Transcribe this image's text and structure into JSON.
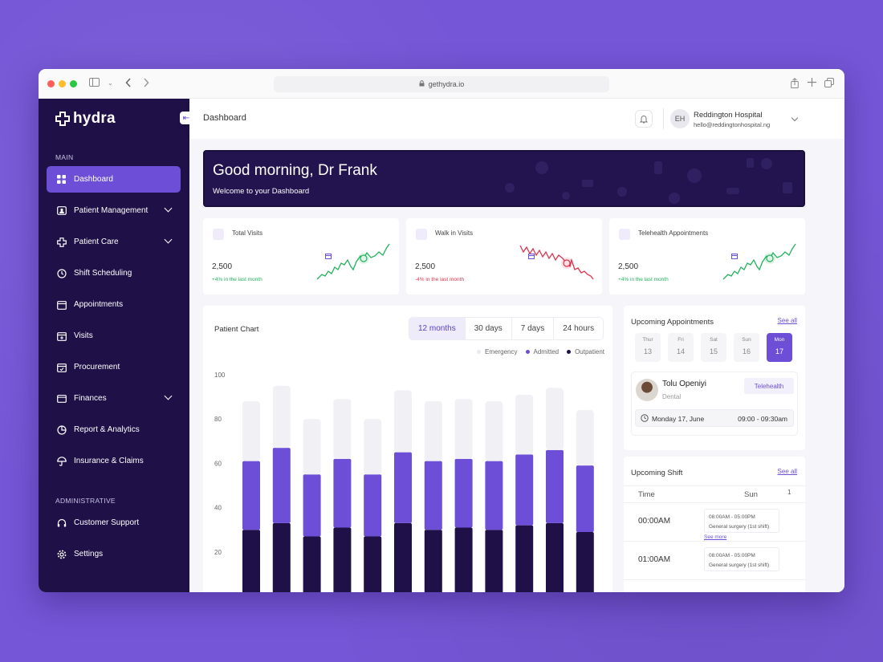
{
  "browser": {
    "url": "gethydra.io"
  },
  "sidebar": {
    "logo": "hydra",
    "section_main": "MAIN",
    "section_admin": "ADMINISTRATIVE",
    "items": [
      {
        "label": "Dashboard",
        "icon": "grid-icon",
        "active": true,
        "expandable": false
      },
      {
        "label": "Patient Management",
        "icon": "id-card-icon",
        "expandable": true
      },
      {
        "label": "Patient Care",
        "icon": "medical-cross-icon",
        "expandable": true
      },
      {
        "label": "Shift Scheduling",
        "icon": "clock-icon",
        "expandable": false
      },
      {
        "label": "Appointments",
        "icon": "calendar-icon",
        "expandable": false
      },
      {
        "label": "Visits",
        "icon": "calendar-plus-icon",
        "expandable": false
      },
      {
        "label": "Procurement",
        "icon": "calendar-add-icon",
        "expandable": false
      },
      {
        "label": "Finances",
        "icon": "wallet-icon",
        "expandable": true
      },
      {
        "label": "Report & Analytics",
        "icon": "pie-chart-icon",
        "expandable": false
      },
      {
        "label": "Insurance & Claims",
        "icon": "umbrella-icon",
        "expandable": false
      }
    ],
    "admin_items": [
      {
        "label": "Customer Support",
        "icon": "headset-icon"
      },
      {
        "label": "Settings",
        "icon": "gear-icon"
      }
    ]
  },
  "header": {
    "title": "Dashboard",
    "user_initials": "EH",
    "user_name": "Reddington Hospital",
    "user_email": "hello@reddingtonhospital.ng"
  },
  "banner": {
    "greeting": "Good morning, Dr Frank",
    "subtitle": "Welcome to your Dashboard"
  },
  "stats": [
    {
      "label": "Total Visits",
      "value": "2,500",
      "change": "+4% in the last month",
      "trend": "up",
      "color": "#22b35e"
    },
    {
      "label": "Walk in Visits",
      "value": "2,500",
      "change": "-4% in the last month",
      "trend": "down",
      "color": "#e0334f"
    },
    {
      "label": "Telehealth Appointments",
      "value": "2,500",
      "change": "+4% in the last month",
      "trend": "up",
      "color": "#22b35e"
    }
  ],
  "patient_chart": {
    "title": "Patient Chart",
    "tabs": [
      "12 months",
      "30 days",
      "7 days",
      "24 hours"
    ],
    "active_tab": "12 months"
  },
  "chart_data": {
    "type": "bar",
    "stacked": true,
    "categories": [
      "",
      "",
      "",
      "",
      "",
      "",
      "",
      "",
      "",
      "",
      "",
      ""
    ],
    "series": [
      {
        "name": "Outpatient",
        "color": "#1f1147",
        "values": [
          30,
          33,
          27,
          31,
          27,
          33,
          30,
          31,
          30,
          32,
          33,
          29
        ]
      },
      {
        "name": "Admitted",
        "color": "#6c4fd6",
        "values": [
          31,
          34,
          28,
          31,
          28,
          32,
          31,
          31,
          31,
          32,
          33,
          30
        ]
      },
      {
        "name": "Emergency",
        "color": "#f0f0f5",
        "values": [
          27,
          28,
          25,
          27,
          25,
          28,
          27,
          27,
          27,
          27,
          28,
          25
        ]
      }
    ],
    "yticks": [
      "100",
      "80",
      "60",
      "40",
      "20"
    ],
    "ylim": [
      0,
      100
    ],
    "legend": "top-right"
  },
  "appointments": {
    "title": "Upcoming Appointments",
    "see_all": "See all",
    "days": [
      {
        "name": "Thur",
        "num": "13"
      },
      {
        "name": "Fri",
        "num": "14"
      },
      {
        "name": "Sat",
        "num": "15"
      },
      {
        "name": "Sun",
        "num": "16"
      },
      {
        "name": "Mon",
        "num": "17",
        "active": true
      }
    ],
    "item": {
      "name": "Tolu Openiyi",
      "specialty": "Dental",
      "tag": "Telehealth",
      "date": "Monday 17, June",
      "time": "09:00 - 09:30am"
    }
  },
  "shift": {
    "title": "Upcoming Shift",
    "see_all": "See all",
    "col_time": "Time",
    "col_day": "Sun",
    "col_num": "1",
    "rows": [
      {
        "time": "00:00AM",
        "slot": "08:00AM - 05:00PM",
        "desc": "General surgery (1st shift)",
        "more": "See more"
      },
      {
        "time": "01:00AM",
        "slot": "08:00AM - 05:00PM",
        "desc": "General surgery (1st shift)"
      }
    ]
  }
}
